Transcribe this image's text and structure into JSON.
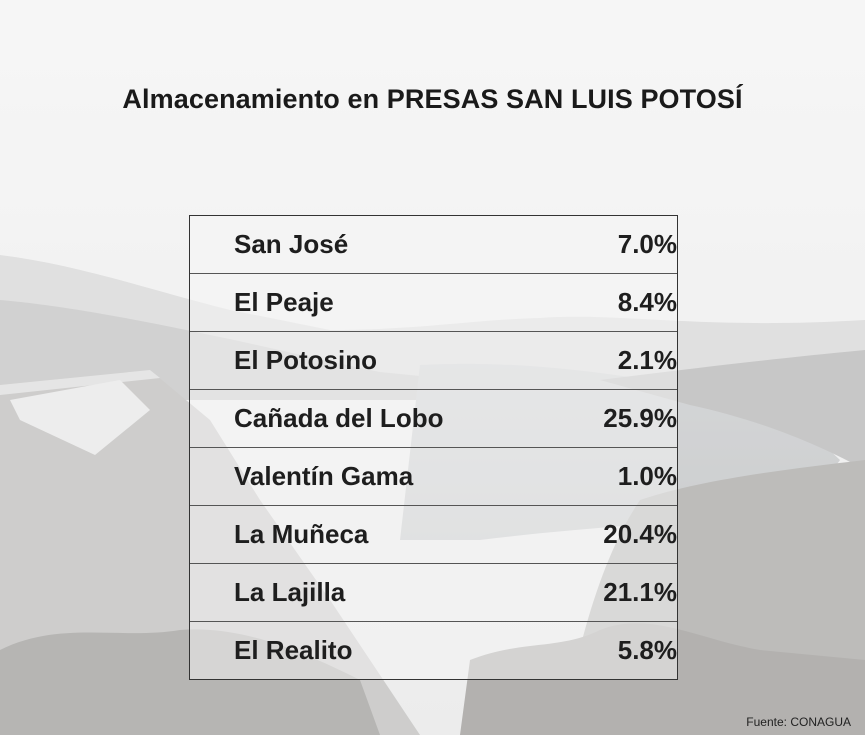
{
  "title": "Almacenamiento en PRESAS SAN LUIS POTOSÍ",
  "rows": [
    {
      "name": "San José",
      "value": "7.0%"
    },
    {
      "name": "El Peaje",
      "value": "8.4%"
    },
    {
      "name": "El Potosino",
      "value": "2.1%"
    },
    {
      "name": "Cañada del Lobo",
      "value": "25.9%"
    },
    {
      "name": "Valentín Gama",
      "value": "1.0%"
    },
    {
      "name": "La Muñeca",
      "value": "20.4%"
    },
    {
      "name": "La Lajilla",
      "value": "21.1%"
    },
    {
      "name": "El Realito",
      "value": "5.8%"
    }
  ],
  "source": "Fuente: CONAGUA",
  "colors": {
    "text": "#1e1e1e",
    "background": "#e9e9e9"
  }
}
